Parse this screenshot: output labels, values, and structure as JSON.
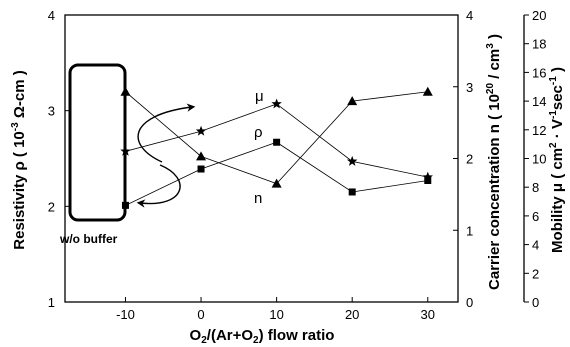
{
  "chart_data": {
    "type": "line",
    "x": [
      -10,
      0,
      10,
      20,
      30
    ],
    "xlabel": "O2/(Ar+O2) flow ratio",
    "xticks": [
      "-10",
      "0",
      "10",
      "20",
      "30"
    ],
    "xlim": [
      -18,
      34
    ],
    "axes": {
      "left": {
        "label": "Resistivity ρ ( 10-3 Ω-cm )",
        "ylim": [
          1,
          4
        ],
        "ticks": [
          "1",
          "2",
          "3",
          "4"
        ]
      },
      "right1": {
        "label": "Carrier concentration n ( 1020 / cm3 )",
        "ylim": [
          0,
          4
        ],
        "ticks": [
          "0",
          "1",
          "2",
          "3",
          "4"
        ]
      },
      "right2": {
        "label": "Mobility μ ( cm2 · V-1sec-1 )",
        "ylim": [
          0,
          20
        ],
        "ticks": [
          "0",
          "2",
          "4",
          "6",
          "8",
          "10",
          "12",
          "14",
          "16",
          "18",
          "20"
        ]
      }
    },
    "series": [
      {
        "name": "ρ",
        "axis": "left",
        "marker": "square",
        "values": [
          2.01,
          2.39,
          2.67,
          2.15,
          2.27
        ]
      },
      {
        "name": "n",
        "axis": "right1",
        "marker": "triangle",
        "values": [
          2.93,
          2.03,
          1.65,
          2.8,
          2.93
        ]
      },
      {
        "name": "μ",
        "axis": "right2",
        "marker": "star",
        "values": [
          10.5,
          11.9,
          13.8,
          9.8,
          8.7
        ]
      }
    ],
    "annotations": {
      "buffer_label": "w/o buffer",
      "mu_label": "μ",
      "rho_label": "ρ",
      "n_label": "n"
    }
  }
}
